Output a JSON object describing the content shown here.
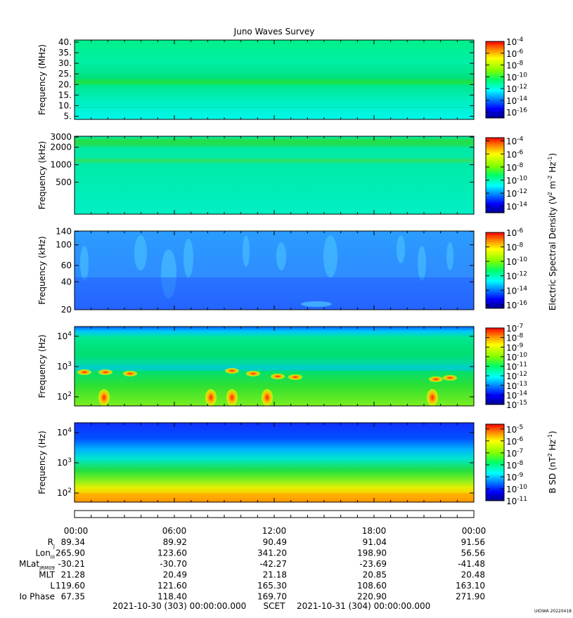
{
  "chart_data": {
    "type": "heatmap",
    "title": "Juno Waves Survey",
    "x_ticks": [
      "00:00",
      "06:00",
      "12:00",
      "18:00",
      "00:00"
    ],
    "panels": [
      {
        "name": "HFR high",
        "ylabel": "Frequency (MHz)",
        "yscale": "linear",
        "ylim": [
          3.5,
          41
        ],
        "yticks": [
          "40.",
          "35.",
          "30.",
          "25.",
          "20.",
          "15.",
          "10.",
          "5."
        ],
        "ytick_values": [
          40,
          35,
          30,
          25,
          20,
          15,
          10,
          5
        ],
        "colorbar_ticks": [
          "-4",
          "-6",
          "-8",
          "-10",
          "-12",
          "-14",
          "-16"
        ],
        "colorbar_range": [
          -17,
          -4
        ]
      },
      {
        "name": "HFR low",
        "ylabel": "Frequency (kHz)",
        "yscale": "log",
        "ylim": [
          140,
          3100
        ],
        "yticks": [
          "3000",
          "2000",
          "1000",
          "500"
        ],
        "ytick_values": [
          3000,
          2000,
          1000,
          500
        ],
        "colorbar_ticks": [
          "-4",
          "-6",
          "-8",
          "-10",
          "-12",
          "-14"
        ],
        "colorbar_range": [
          -15,
          -3.5
        ]
      },
      {
        "name": "LFR high",
        "ylabel": "Frequency (kHz)",
        "yscale": "log",
        "ylim": [
          20,
          141
        ],
        "yticks": [
          "140",
          "100",
          "60",
          "40",
          "20"
        ],
        "ytick_values": [
          140,
          100,
          60,
          40,
          20
        ],
        "colorbar_ticks": [
          "-6",
          "-8",
          "-10",
          "-12",
          "-14",
          "-16"
        ],
        "colorbar_range": [
          -16.5,
          -6
        ]
      },
      {
        "name": "LFR electric",
        "ylabel": "Frequency (Hz)",
        "yscale": "log",
        "ylim": [
          50,
          21000
        ],
        "yticks": [
          "4",
          "3",
          "2"
        ],
        "ytick_values": [
          10000,
          1000,
          100
        ],
        "colorbar_ticks": [
          "-7",
          "-8",
          "-9",
          "-10",
          "-11",
          "-12",
          "-13",
          "-14",
          "-15"
        ],
        "colorbar_range": [
          -15,
          -7
        ]
      },
      {
        "name": "LFR magnetic",
        "ylabel": "Frequency (Hz)",
        "yscale": "log",
        "ylim": [
          50,
          21000
        ],
        "yticks": [
          "4",
          "3",
          "2"
        ],
        "ytick_values": [
          10000,
          1000,
          100
        ],
        "colorbar_ticks": [
          "-5",
          "-6",
          "-7",
          "-8",
          "-9",
          "-10",
          "-11"
        ],
        "colorbar_range": [
          -11,
          -4.6
        ]
      }
    ],
    "colorbar_labels": {
      "electric": "Electric Spectral Density (V",
      "magnetic": "B SD (nT"
    },
    "ephemeris": {
      "rows": [
        {
          "label": "R",
          "sub": "J",
          "values": [
            "89.34",
            "89.92",
            "90.49",
            "91.04",
            "91.56"
          ]
        },
        {
          "label": "Lon",
          "sub": "III",
          "values": [
            "265.90",
            "123.60",
            "341.20",
            "198.90",
            "56.56"
          ]
        },
        {
          "label": "MLat",
          "sub": "JRM09",
          "values": [
            "-30.21",
            "-30.70",
            "-42.27",
            "-23.69",
            "-41.48"
          ]
        },
        {
          "label": "MLT",
          "sub": "",
          "values": [
            "21.28",
            "20.49",
            "21.18",
            "20.85",
            "20.48"
          ]
        },
        {
          "label": "L",
          "sub": "",
          "values": [
            "119.60",
            "121.60",
            "165.30",
            "108.60",
            "163.10"
          ]
        },
        {
          "label": "Io Phase",
          "sub": "",
          "values": [
            "67.35",
            "118.40",
            "169.70",
            "220.90",
            "271.90"
          ]
        }
      ]
    },
    "time_range": {
      "start": "2021-10-30 (303) 00:00:00.000",
      "label": "SCET",
      "end": "2021-10-31 (304) 00:00:00.000"
    },
    "credit": "UIOWA 20220418"
  }
}
